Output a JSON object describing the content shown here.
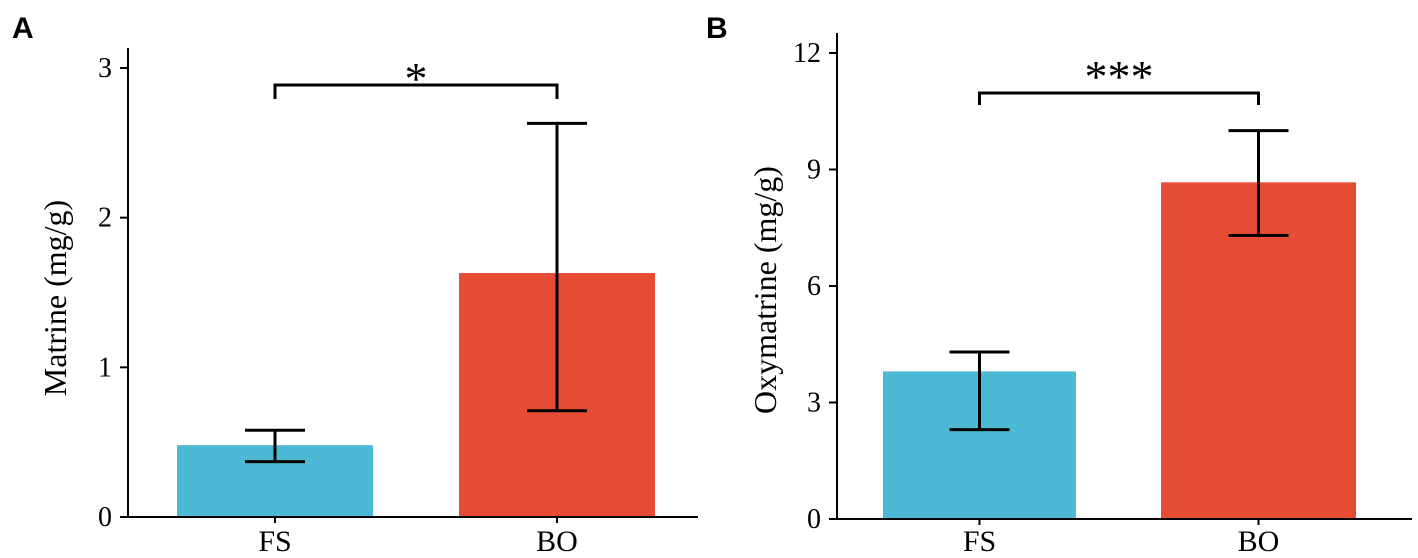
{
  "chart_data": [
    {
      "panel": "A",
      "type": "bar",
      "ylabel": "Matrine (mg/g)",
      "ylim": [
        0,
        3
      ],
      "yticks": [
        "0",
        "1",
        "2",
        "3"
      ],
      "categories": [
        "FS",
        "BO"
      ],
      "values": [
        0.48,
        1.63
      ],
      "error_low": [
        0.37,
        0.71
      ],
      "error_high": [
        0.58,
        2.63
      ],
      "colors": [
        "#4cbad4",
        "#e64c35"
      ],
      "significance": "*"
    },
    {
      "panel": "B",
      "type": "bar",
      "ylabel": "Oxymatrine (mg/g)",
      "ylim": [
        0,
        12
      ],
      "yticks": [
        "0",
        "3",
        "6",
        "9",
        "12"
      ],
      "categories": [
        "FS",
        "BO"
      ],
      "values": [
        3.8,
        8.67
      ],
      "error_low": [
        2.3,
        7.3
      ],
      "error_high": [
        4.3,
        10.0
      ],
      "colors": [
        "#4cbad4",
        "#e64c35"
      ],
      "significance": "***"
    }
  ]
}
